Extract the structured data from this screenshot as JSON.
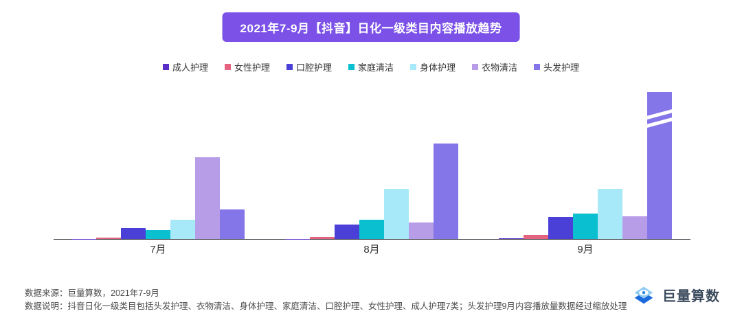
{
  "title": {
    "text": "2021年7-9月【抖音】日化一级类目内容播放趋势",
    "background_color": "#7b51e8",
    "text_color": "#ffffff"
  },
  "chart_data": {
    "type": "bar",
    "title": "2021年7-9月【抖音】日化一级类目内容播放趋势",
    "categories": [
      "7月",
      "8月",
      "9月"
    ],
    "series": [
      {
        "name": "成人护理",
        "color": "#5b2ec8",
        "values": [
          0.5,
          0.5,
          1
        ]
      },
      {
        "name": "女性护理",
        "color": "#e4647f",
        "values": [
          2,
          3,
          6
        ]
      },
      {
        "name": "口腔护理",
        "color": "#4a40d8",
        "values": [
          16,
          21,
          32
        ]
      },
      {
        "name": "家庭清洁",
        "color": "#0abfcf",
        "values": [
          13,
          28,
          37
        ]
      },
      {
        "name": "身体护理",
        "color": "#a8e9f9",
        "values": [
          28,
          73,
          73
        ]
      },
      {
        "name": "衣物清洁",
        "color": "#b79ce8",
        "values": [
          119,
          24,
          33
        ]
      },
      {
        "name": "头发护理",
        "color": "#8476e8",
        "values": [
          43,
          139,
          214
        ]
      }
    ],
    "xlabel": "",
    "ylabel": "",
    "ylim": [
      0,
      228
    ],
    "value_axis_visible": false,
    "grid": false,
    "legend_position": "top",
    "values_note": "图中无纵轴刻度；数值为按柱高估算的相对指数",
    "break_marker": {
      "series": "头发护理",
      "category": "9月",
      "note": "头发护理9月内容播放量数据经过缩放处理（柱体带截断标记）"
    }
  },
  "footer": {
    "source_line": "数据来源：巨量算数，2021年7-9月",
    "note_line": "数据说明：抖音日化一级类目包括头发护理、衣物清洁、身体护理、家庭清洁、口腔护理、女性护理、成人护理7类；头发护理9月内容播放量数据经过缩放处理"
  },
  "logo": {
    "text": "巨量算数",
    "icon_colors": {
      "top": "#8fcbf2",
      "bottom": "#1b6ade",
      "dot": "#2e8be6"
    }
  }
}
